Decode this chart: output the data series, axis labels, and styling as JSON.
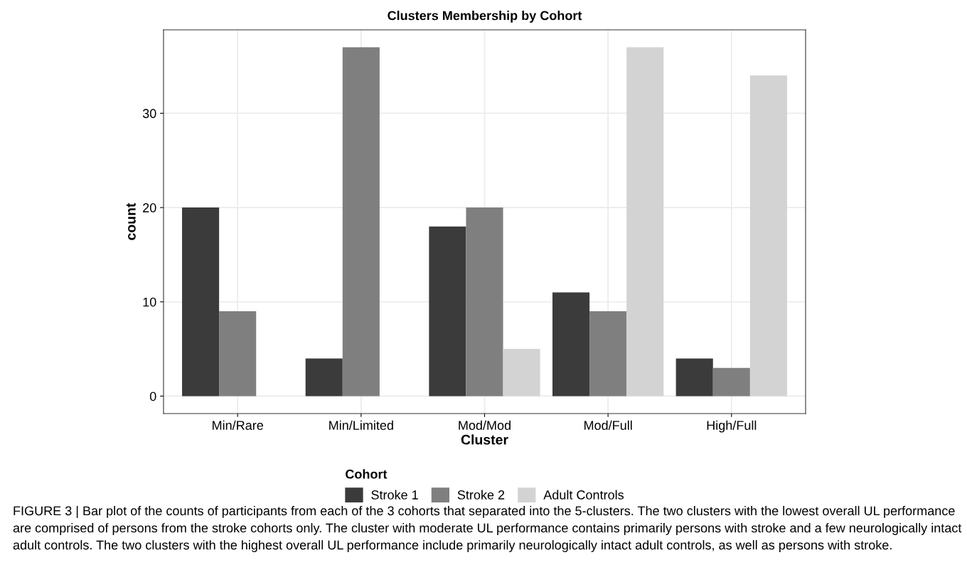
{
  "chart_data": {
    "type": "bar",
    "title": "Clusters Membership by Cohort",
    "xlabel": "Cluster",
    "ylabel": "count",
    "legend_title": "Cohort",
    "categories": [
      "Min/Rare",
      "Min/Limited",
      "Mod/Mod",
      "Mod/Full",
      "High/Full"
    ],
    "series": [
      {
        "name": "Stroke 1",
        "color": "#3b3b3b",
        "values": [
          20,
          4,
          18,
          11,
          4
        ]
      },
      {
        "name": "Stroke 2",
        "color": "#7f7f7f",
        "values": [
          9,
          37,
          20,
          9,
          3
        ]
      },
      {
        "name": "Adult Controls",
        "color": "#d3d3d3",
        "values": [
          null,
          null,
          5,
          37,
          34
        ]
      }
    ],
    "ylim": [
      -1.85,
      38.85
    ],
    "yticks": [
      0,
      10,
      20,
      30
    ],
    "grid": true,
    "legend": "bottom",
    "annotations": [
      "FIGURE 3 | Bar plot of the counts of participants from each of the 3 cohorts that separated into the 5-clusters. The two clusters with the lowest overall UL performance are comprised of persons from the stroke cohorts only. The cluster with moderate UL performance contains primarily persons with stroke and a few neurologically intact adult controls. The two clusters with the highest overall UL performance include primarily neurologically intact adult controls, as well as persons with stroke."
    ]
  }
}
